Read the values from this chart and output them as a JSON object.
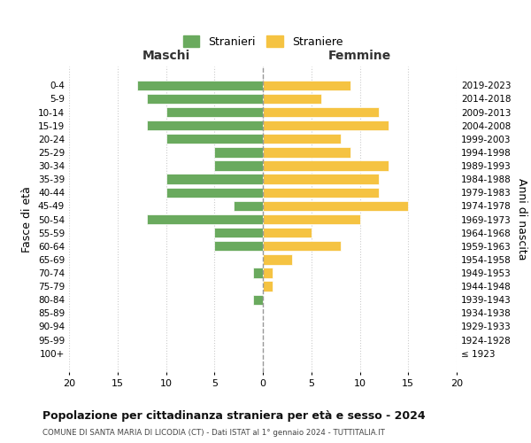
{
  "age_groups": [
    "0-4",
    "5-9",
    "10-14",
    "15-19",
    "20-24",
    "25-29",
    "30-34",
    "35-39",
    "40-44",
    "45-49",
    "50-54",
    "55-59",
    "60-64",
    "65-69",
    "70-74",
    "75-79",
    "80-84",
    "85-89",
    "90-94",
    "95-99",
    "100+"
  ],
  "birth_years": [
    "2019-2023",
    "2014-2018",
    "2009-2013",
    "2004-2008",
    "1999-2003",
    "1994-1998",
    "1989-1993",
    "1984-1988",
    "1979-1983",
    "1974-1978",
    "1969-1973",
    "1964-1968",
    "1959-1963",
    "1954-1958",
    "1949-1953",
    "1944-1948",
    "1939-1943",
    "1934-1938",
    "1929-1933",
    "1924-1928",
    "≤ 1923"
  ],
  "males": [
    13,
    12,
    10,
    12,
    10,
    5,
    5,
    10,
    10,
    3,
    12,
    5,
    5,
    0,
    1,
    0,
    1,
    0,
    0,
    0,
    0
  ],
  "females": [
    9,
    6,
    12,
    13,
    8,
    9,
    13,
    12,
    12,
    15,
    10,
    5,
    8,
    3,
    1,
    1,
    0,
    0,
    0,
    0,
    0
  ],
  "male_color": "#6aaa5e",
  "female_color": "#f5c342",
  "male_label": "Stranieri",
  "female_label": "Straniere",
  "title": "Popolazione per cittadinanza straniera per età e sesso - 2024",
  "subtitle": "COMUNE DI SANTA MARIA DI LICODIA (CT) - Dati ISTAT al 1° gennaio 2024 - TUTTITALIA.IT",
  "left_header": "Maschi",
  "right_header": "Femmine",
  "left_axis_label": "Fasce di età",
  "right_axis_label": "Anni di nascita",
  "xlim": 20,
  "background_color": "#ffffff",
  "grid_color": "#cccccc",
  "dashed_line_color": "#999999"
}
